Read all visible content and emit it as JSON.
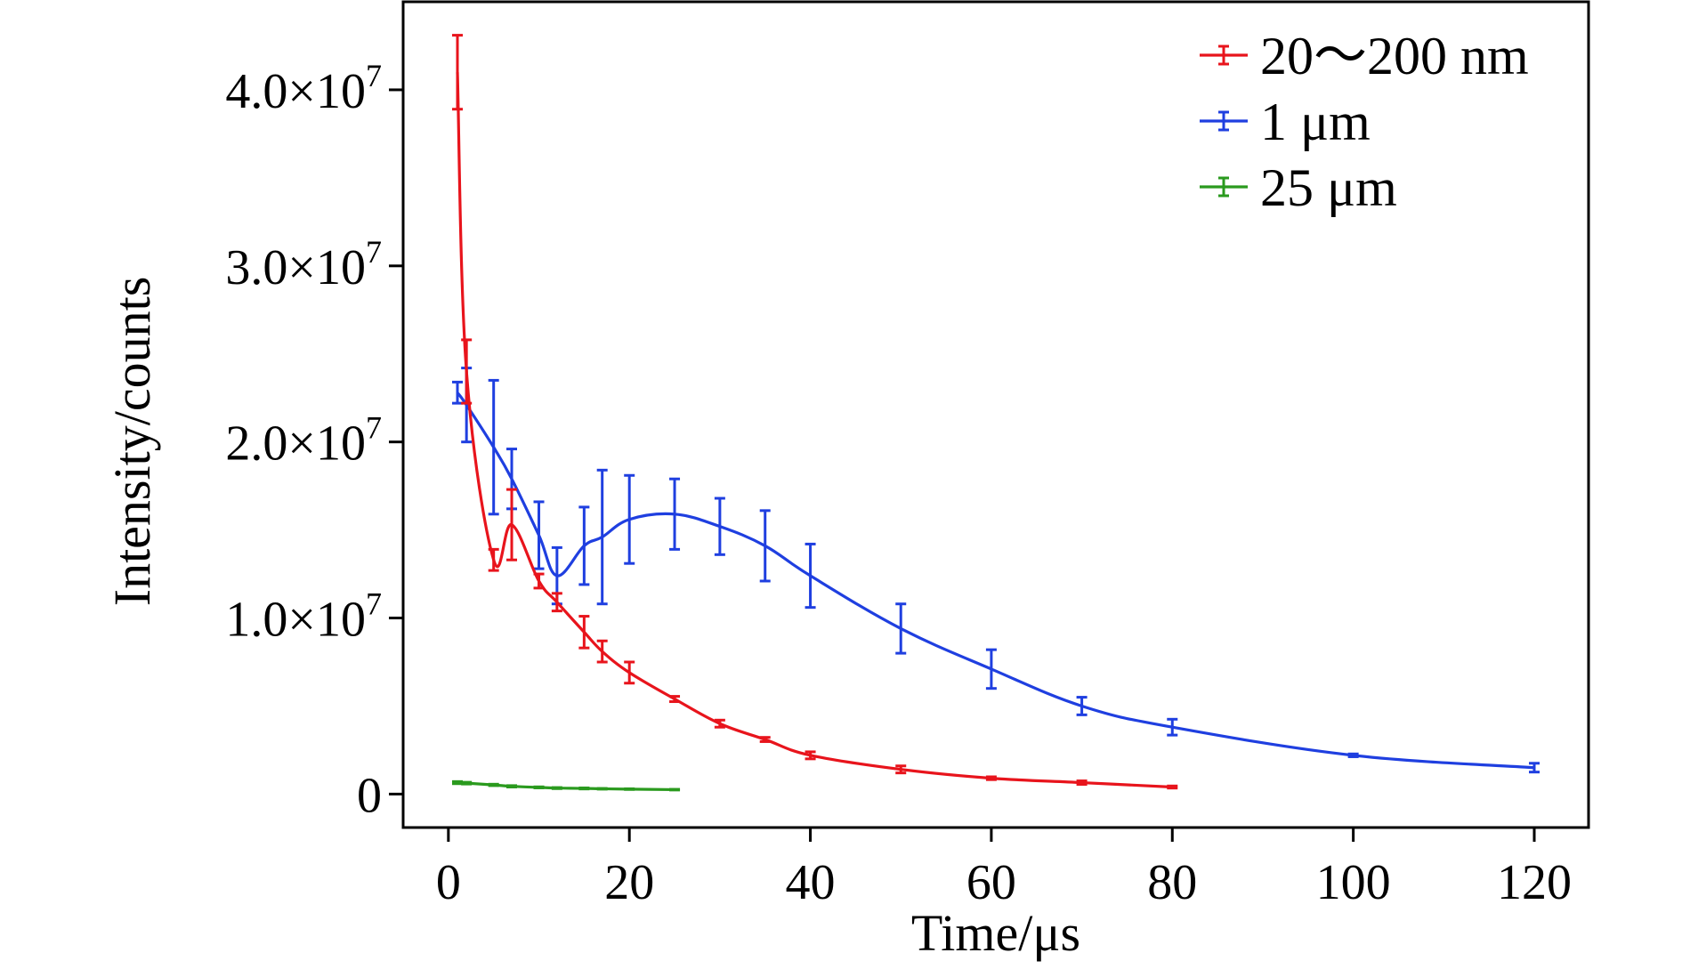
{
  "chart_data": {
    "type": "line",
    "xlabel": "Time/μs",
    "ylabel": "Intensity/counts",
    "xlim": [
      -5,
      126
    ],
    "ylim": [
      -1900000,
      45000000
    ],
    "x_ticks": [
      0,
      20,
      40,
      60,
      80,
      100,
      120
    ],
    "x_tick_labels": [
      "0",
      "20",
      "40",
      "60",
      "80",
      "100",
      "120"
    ],
    "y_ticks": [
      0,
      10000000,
      20000000,
      30000000,
      40000000
    ],
    "y_tick_labels": [
      {
        "mantissa": "0",
        "exp": ""
      },
      {
        "mantissa": "1.0×10",
        "exp": "7"
      },
      {
        "mantissa": "2.0×10",
        "exp": "7"
      },
      {
        "mantissa": "3.0×10",
        "exp": "7"
      },
      {
        "mantissa": "4.0×10",
        "exp": "7"
      }
    ],
    "grid": false,
    "legend_position": "top-right",
    "series": [
      {
        "name": "20～200 nm",
        "color": "#e8141c",
        "x": [
          1,
          2,
          5,
          7,
          10,
          12,
          15,
          17,
          20,
          25,
          30,
          35,
          40,
          50,
          60,
          70,
          80
        ],
        "y": [
          41000000,
          24000000,
          13300000,
          15300000,
          12100000,
          10900000,
          9200000,
          8100000,
          6900000,
          5400000,
          4000000,
          3100000,
          2200000,
          1400000,
          900000,
          650000,
          400000
        ],
        "err": [
          2100000,
          1800000,
          600000,
          2000000,
          400000,
          500000,
          900000,
          600000,
          600000,
          150000,
          200000,
          120000,
          200000,
          200000,
          80000,
          100000,
          60000
        ]
      },
      {
        "name": "1 μm",
        "color": "#1f3fe0",
        "x": [
          1,
          2,
          5,
          7,
          10,
          12,
          15,
          17,
          20,
          25,
          30,
          35,
          40,
          50,
          60,
          70,
          80,
          100,
          120
        ],
        "y": [
          22800000,
          22100000,
          19700000,
          17900000,
          14700000,
          12400000,
          14100000,
          14600000,
          15600000,
          15900000,
          15200000,
          14100000,
          12400000,
          9400000,
          7100000,
          5000000,
          3800000,
          2200000,
          1500000
        ],
        "err": [
          600000,
          2100000,
          3800000,
          1700000,
          1900000,
          1600000,
          2200000,
          3800000,
          2500000,
          2000000,
          1600000,
          2000000,
          1800000,
          1400000,
          1100000,
          500000,
          450000,
          80000,
          250000
        ]
      },
      {
        "name": "25 μm",
        "color": "#2a9a1e",
        "x": [
          1,
          2,
          5,
          7,
          10,
          12,
          15,
          17,
          20,
          25
        ],
        "y": [
          650000,
          620000,
          520000,
          440000,
          380000,
          340000,
          320000,
          300000,
          280000,
          250000
        ],
        "err": [
          60000,
          50000,
          40000,
          40000,
          30000,
          30000,
          30000,
          20000,
          20000,
          20000
        ]
      }
    ]
  }
}
